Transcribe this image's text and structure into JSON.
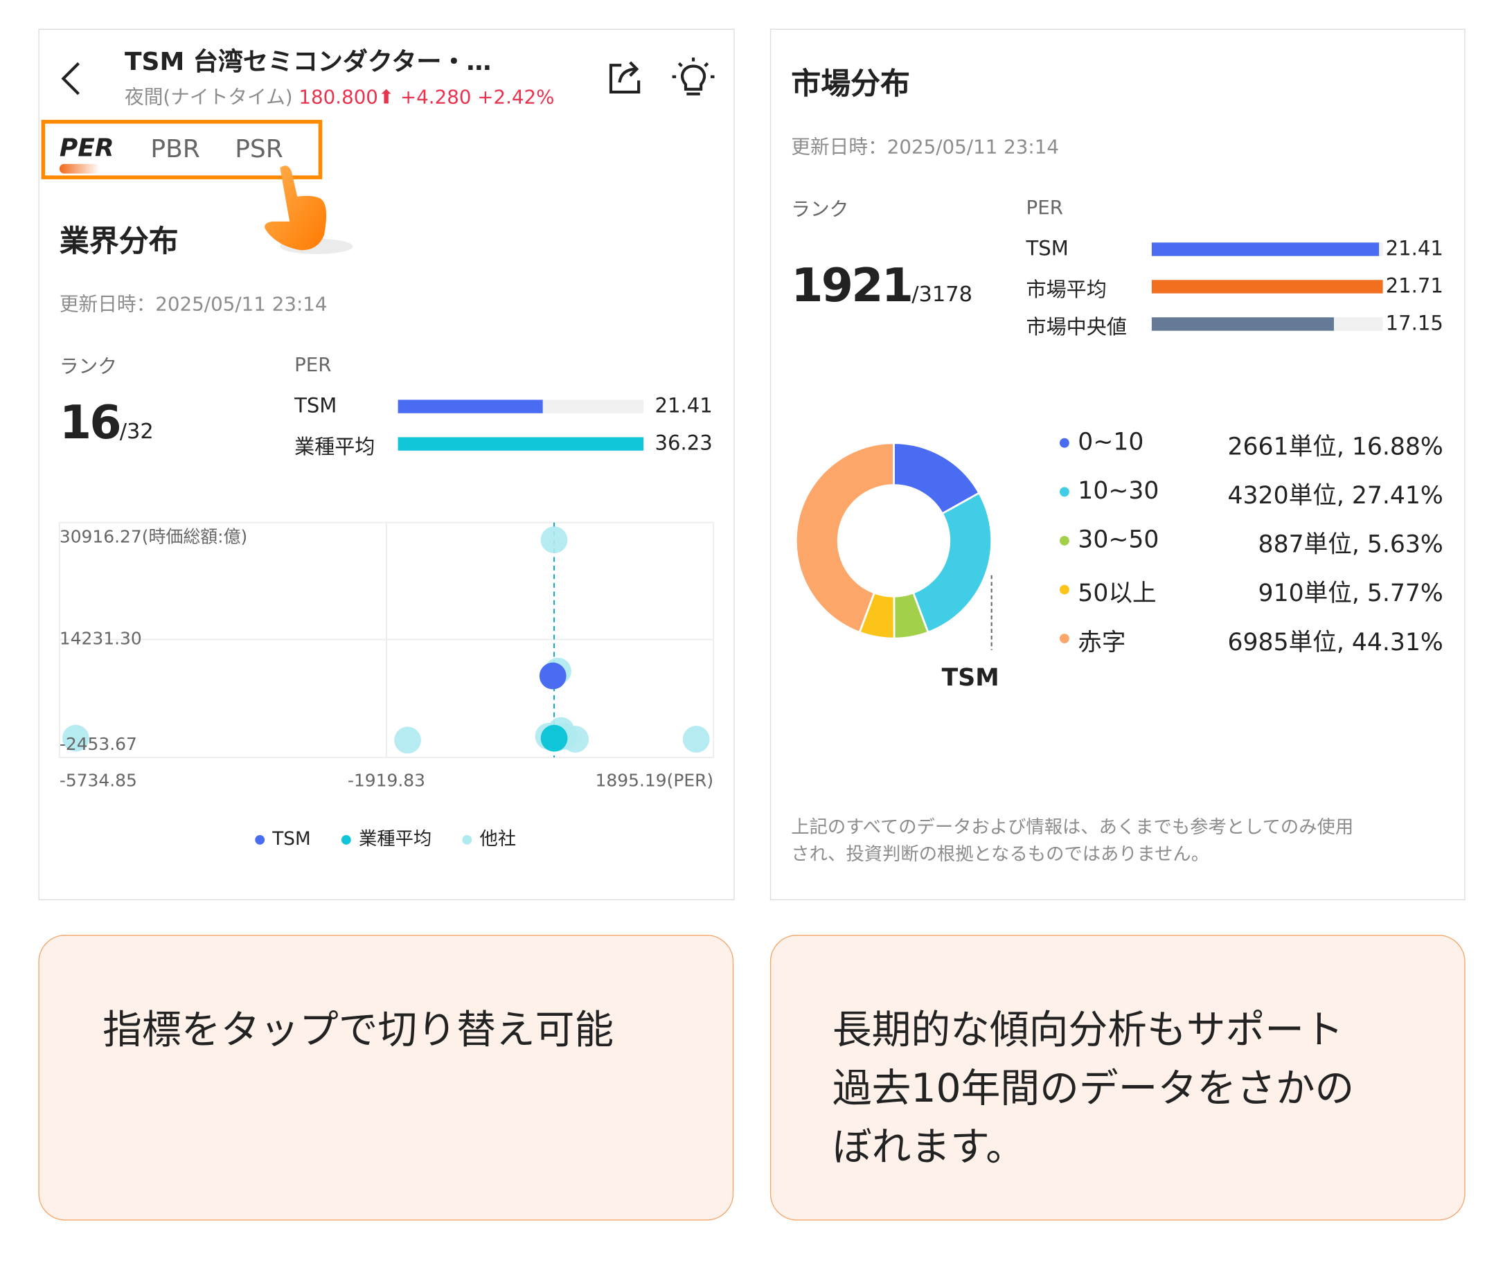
{
  "header": {
    "title": "TSM 台湾セミコンダクター・…",
    "session": "夜間(ナイトタイム)",
    "price": "180.800",
    "change": "+4.280",
    "change_pct": "+2.42%",
    "up_color": "#e8334f"
  },
  "tabs": [
    {
      "label": "PER",
      "active": true
    },
    {
      "label": "PBR",
      "active": false
    },
    {
      "label": "PSR",
      "active": false
    }
  ],
  "industry": {
    "title": "業界分布",
    "updated": "更新日時：2025/05/11 23:14",
    "rank_label": "ランク",
    "metric_label": "PER",
    "rank": "16",
    "rank_total": "/32",
    "bars": [
      {
        "label": "TSM",
        "value": "21.41",
        "fraction": 0.59,
        "color": "#4a6cf2"
      },
      {
        "label": "業種平均",
        "value": "36.23",
        "fraction": 1.0,
        "color": "#11c5d9"
      }
    ]
  },
  "chart_data": {
    "type": "scatter",
    "title": "",
    "xlabel": "PER",
    "ylabel": "時価総額:億",
    "xlim": [
      -5734.85,
      1895.19
    ],
    "ylim": [
      -2453.67,
      30916.27
    ],
    "x_ticks": [
      "-5734.85",
      "-1919.83",
      "1895.19(PER)"
    ],
    "y_ticks": [
      "30916.27(時価総額:億)",
      "14231.30",
      "-2453.67"
    ],
    "legend": [
      "TSM",
      "業種平均",
      "他社"
    ],
    "legend_position": "bottom",
    "series": [
      {
        "name": "他社",
        "color": "#aeeaf0",
        "points": [
          [
            36,
            29990
          ],
          [
            80,
            9226
          ],
          [
            -5545,
            -1392
          ],
          [
            -1673,
            -1695
          ],
          [
            1695,
            -1544
          ],
          [
            283,
            -1544
          ],
          [
            117,
            -178
          ],
          [
            -30,
            -1090
          ],
          [
            150,
            -1090
          ],
          [
            60,
            -1392
          ]
        ]
      },
      {
        "name": "業種平均",
        "color": "#11c5d9",
        "points": [
          [
            36.23,
            -1392
          ]
        ]
      },
      {
        "name": "TSM",
        "color": "#4a6cf2",
        "points": [
          [
            21.41,
            8467
          ]
        ]
      }
    ]
  },
  "market": {
    "title": "市場分布",
    "updated": "更新日時：2025/05/11 23:14",
    "rank_label": "ランク",
    "metric_label": "PER",
    "rank": "1921",
    "rank_total": "/3178",
    "bars": [
      {
        "label": "TSM",
        "value": "21.41",
        "fraction": 0.985,
        "color": "#4a6cf2"
      },
      {
        "label": "市場平均",
        "value": "21.71",
        "fraction": 1.0,
        "color": "#f07020"
      },
      {
        "label": "市場中央値",
        "value": "17.15",
        "fraction": 0.79,
        "color": "#647a96"
      }
    ],
    "donut_marker": "TSM",
    "distribution": [
      {
        "label": "0~10",
        "value": "2661単位, 16.88%",
        "pct": 16.88,
        "color": "#4a6cf2"
      },
      {
        "label": "10~30",
        "value": "4320単位, 27.41%",
        "pct": 27.41,
        "color": "#41cde6"
      },
      {
        "label": "30~50",
        "value": "887単位, 5.63%",
        "pct": 5.63,
        "color": "#a3d04b"
      },
      {
        "label": "50以上",
        "value": "910単位, 5.77%",
        "pct": 5.77,
        "color": "#fcc419"
      },
      {
        "label": "赤字",
        "value": "6985単位, 44.31%",
        "pct": 44.31,
        "color": "#fda66a"
      }
    ],
    "disclaimer_1": "上記のすべてのデータおよび情報は、あくまでも参考としてのみ使用",
    "disclaimer_2": "され、投資判断の根拠となるものではありません。"
  },
  "notes": {
    "left": "指標をタップで切り替え可能",
    "right_1": "長期的な傾向分析もサポート",
    "right_2": "過去10年間のデータをさかの",
    "right_3": "ぼれます。"
  }
}
